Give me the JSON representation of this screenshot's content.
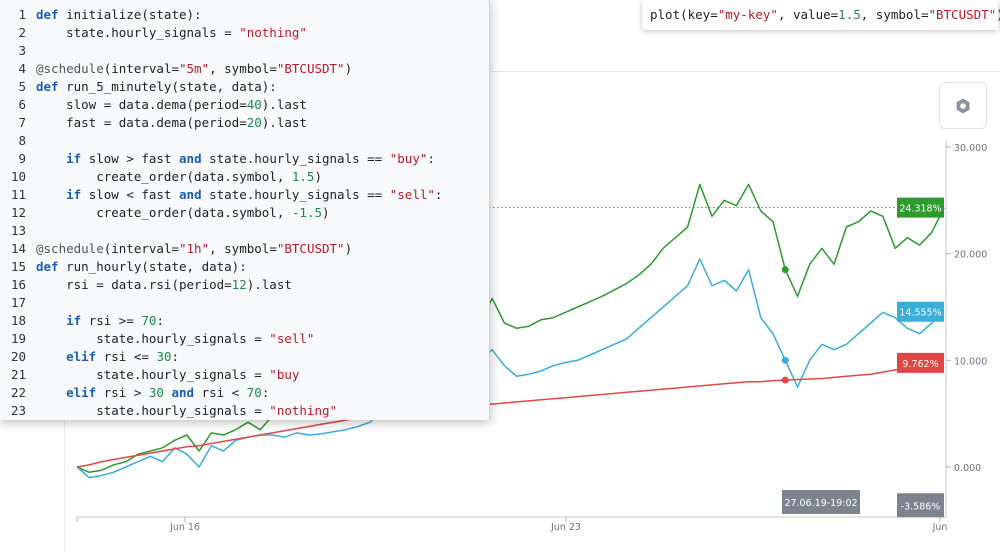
{
  "plot_snippet": {
    "prefix": "plot(key=",
    "key_value": "\"my-key\"",
    "middle": ", value=",
    "value": "1.5",
    "middle2": ", symbol=",
    "symbol": "\"BTCUSDT\"",
    "suffix": ")"
  },
  "settings_icon": "hexagon-icon",
  "code_lines": [
    {
      "n": "1",
      "tokens": [
        [
          "kw",
          "def"
        ],
        [
          "t",
          " initialize(state):"
        ]
      ]
    },
    {
      "n": "2",
      "tokens": [
        [
          "t",
          "    state.hourly_signals = "
        ],
        [
          "str",
          "\"nothing\""
        ]
      ]
    },
    {
      "n": "3",
      "tokens": []
    },
    {
      "n": "4",
      "tokens": [
        [
          "dec",
          "@schedule"
        ],
        [
          "t",
          "(interval="
        ],
        [
          "str",
          "\"5m\""
        ],
        [
          "t",
          ", symbol="
        ],
        [
          "str",
          "\"BTCUSDT\""
        ],
        [
          "t",
          ")"
        ]
      ]
    },
    {
      "n": "5",
      "tokens": [
        [
          "kw",
          "def"
        ],
        [
          "t",
          " run_5_minutely(state, data):"
        ]
      ]
    },
    {
      "n": "6",
      "tokens": [
        [
          "t",
          "    slow = data.dema(period="
        ],
        [
          "num",
          "40"
        ],
        [
          "t",
          ").last"
        ]
      ]
    },
    {
      "n": "7",
      "tokens": [
        [
          "t",
          "    fast = data.dema(period="
        ],
        [
          "num",
          "20"
        ],
        [
          "t",
          ").last"
        ]
      ]
    },
    {
      "n": "8",
      "tokens": []
    },
    {
      "n": "9",
      "tokens": [
        [
          "t",
          "    "
        ],
        [
          "kw",
          "if"
        ],
        [
          "t",
          " slow > fast "
        ],
        [
          "kw",
          "and"
        ],
        [
          "t",
          " state.hourly_signals == "
        ],
        [
          "str",
          "\"buy\""
        ],
        [
          "t",
          ":"
        ]
      ]
    },
    {
      "n": "10",
      "tokens": [
        [
          "t",
          "        create_order(data.symbol, "
        ],
        [
          "num",
          "1.5"
        ],
        [
          "t",
          ")"
        ]
      ]
    },
    {
      "n": "11",
      "tokens": [
        [
          "t",
          "    "
        ],
        [
          "kw",
          "if"
        ],
        [
          "t",
          " slow < fast "
        ],
        [
          "kw",
          "and"
        ],
        [
          "t",
          " state.hourly_signals == "
        ],
        [
          "str",
          "\"sell\""
        ],
        [
          "t",
          ":"
        ]
      ]
    },
    {
      "n": "12",
      "tokens": [
        [
          "t",
          "        create_order(data.symbol, "
        ],
        [
          "num",
          "-1.5"
        ],
        [
          "t",
          ")"
        ]
      ]
    },
    {
      "n": "13",
      "tokens": []
    },
    {
      "n": "14",
      "tokens": [
        [
          "dec",
          "@schedule"
        ],
        [
          "t",
          "(interval="
        ],
        [
          "str",
          "\"1h\""
        ],
        [
          "t",
          ", symbol="
        ],
        [
          "str",
          "\"BTCUSDT\""
        ],
        [
          "t",
          ")"
        ]
      ]
    },
    {
      "n": "15",
      "tokens": [
        [
          "kw",
          "def"
        ],
        [
          "t",
          " run_hourly(state, data):"
        ]
      ]
    },
    {
      "n": "16",
      "tokens": [
        [
          "t",
          "    rsi = data.rsi(period="
        ],
        [
          "num",
          "12"
        ],
        [
          "t",
          ").last"
        ]
      ]
    },
    {
      "n": "17",
      "tokens": []
    },
    {
      "n": "18",
      "tokens": [
        [
          "t",
          "    "
        ],
        [
          "kw",
          "if"
        ],
        [
          "t",
          " rsi >= "
        ],
        [
          "num",
          "70"
        ],
        [
          "t",
          ":"
        ]
      ]
    },
    {
      "n": "19",
      "tokens": [
        [
          "t",
          "        state.hourly_signals = "
        ],
        [
          "str",
          "\"sell\""
        ]
      ]
    },
    {
      "n": "20",
      "tokens": [
        [
          "t",
          "    "
        ],
        [
          "kw",
          "elif"
        ],
        [
          "t",
          " rsi <= "
        ],
        [
          "num",
          "30"
        ],
        [
          "t",
          ":"
        ]
      ]
    },
    {
      "n": "21",
      "tokens": [
        [
          "t",
          "        state.hourly_signals = "
        ],
        [
          "str",
          "\"buy"
        ]
      ]
    },
    {
      "n": "22",
      "tokens": [
        [
          "t",
          "    "
        ],
        [
          "kw",
          "elif"
        ],
        [
          "t",
          " rsi > "
        ],
        [
          "num",
          "30"
        ],
        [
          "t",
          " "
        ],
        [
          "kw",
          "and"
        ],
        [
          "t",
          " rsi < "
        ],
        [
          "num",
          "70"
        ],
        [
          "t",
          ":"
        ]
      ]
    },
    {
      "n": "23",
      "tokens": [
        [
          "t",
          "        state.hourly_signals = "
        ],
        [
          "str",
          "\"nothing\""
        ]
      ]
    }
  ],
  "chart_data": {
    "type": "line",
    "x_tick_labels": [
      "Jun 16",
      "Jun 23",
      "Jun"
    ],
    "y_tick_labels": [
      "30.000",
      "20.000",
      "10.000",
      "0.000"
    ],
    "y_ticks": [
      30,
      20,
      10,
      0
    ],
    "ylim": [
      -4.6,
      30.5
    ],
    "crosshair_label": "27.06.19-19:02",
    "series": [
      {
        "color": "#2f9a2f",
        "last_label": "24.318%",
        "last_value": 24.318,
        "values": [
          0,
          -0.5,
          -0.3,
          0.2,
          0.5,
          1.2,
          1.5,
          1.8,
          2.5,
          3.0,
          1.5,
          3.2,
          3.0,
          3.5,
          4.2,
          3.5,
          4.8,
          4.5,
          5.5,
          5.2,
          6.0,
          6.5,
          7.5,
          7.8,
          8.2,
          8.5,
          9.0,
          9.5,
          10.0,
          10.5,
          11.0,
          11.5,
          12.5,
          13.5,
          15.8,
          13.5,
          13.0,
          13.2,
          13.8,
          14.0,
          14.5,
          15.0,
          15.5,
          16.0,
          16.6,
          17.2,
          18.0,
          19.0,
          20.5,
          21.5,
          22.5,
          26.5,
          23.5,
          25.0,
          24.5,
          26.5,
          24.0,
          23.0,
          18.5,
          16.0,
          19.0,
          20.5,
          19.0,
          22.5,
          23.0,
          24.0,
          23.5,
          20.5,
          21.5,
          20.8,
          22.0,
          24.3
        ]
      },
      {
        "color": "#3aaed8",
        "last_label": "14.555%",
        "last_value": 14.555,
        "values": [
          0,
          -1.0,
          -0.8,
          -0.5,
          0,
          0.5,
          1.0,
          0.5,
          1.8,
          1.2,
          0,
          2.0,
          1.5,
          2.5,
          2.8,
          3.0,
          3.0,
          2.8,
          3.2,
          3.0,
          3.1,
          3.3,
          3.5,
          3.8,
          4.2,
          5.5,
          6.5,
          7.5,
          7.8,
          8.0,
          8.0,
          8.5,
          9.0,
          10.0,
          11.0,
          9.5,
          8.5,
          8.7,
          9.0,
          9.5,
          9.8,
          10.0,
          10.5,
          11.0,
          11.5,
          12.0,
          13.0,
          14.0,
          15.0,
          16.0,
          17.0,
          19.5,
          17.0,
          17.5,
          16.5,
          18.5,
          14.0,
          12.5,
          10.0,
          7.5,
          10.0,
          11.5,
          11.0,
          11.5,
          12.5,
          13.5,
          14.5,
          14.0,
          13.0,
          12.5,
          13.5,
          14.6
        ]
      },
      {
        "color": "#e04848",
        "last_label": "9.762%",
        "last_value": 9.762,
        "values": [
          0,
          0.2,
          0.5,
          0.7,
          0.9,
          1.1,
          1.3,
          1.5,
          1.7,
          1.9,
          2.0,
          2.2,
          2.4,
          2.6,
          2.8,
          3.0,
          3.2,
          3.4,
          3.6,
          3.8,
          4.0,
          4.2,
          4.4,
          4.6,
          4.8,
          5.0,
          5.1,
          5.2,
          5.3,
          5.4,
          5.5,
          5.6,
          5.7,
          5.8,
          5.9,
          6.0,
          6.1,
          6.2,
          6.3,
          6.4,
          6.5,
          6.6,
          6.7,
          6.8,
          6.9,
          7.0,
          7.1,
          7.2,
          7.3,
          7.4,
          7.5,
          7.6,
          7.7,
          7.8,
          7.9,
          8.0,
          8.0,
          8.1,
          8.15,
          8.2,
          8.25,
          8.3,
          8.4,
          8.5,
          8.6,
          8.7,
          8.9,
          9.1,
          9.3,
          9.5,
          9.6,
          9.76
        ]
      }
    ],
    "cursor_label": "-3.586%",
    "cursor_value": -3.586,
    "markers": [
      {
        "series": 0,
        "index": 58
      },
      {
        "series": 1,
        "index": 58
      },
      {
        "series": 2,
        "index": 58
      }
    ],
    "reference_line_value": 24.318
  }
}
